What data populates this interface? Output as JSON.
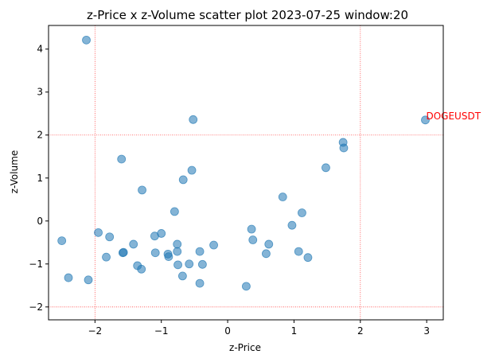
{
  "chart_data": {
    "type": "scatter",
    "title": "z-Price x z-Volume scatter plot 2023-07-25 window:20",
    "xlabel": "z-Price",
    "ylabel": "z-Volume",
    "xlim": [
      -2.7,
      3.25
    ],
    "ylim": [
      -2.3,
      4.55
    ],
    "xticks": [
      -2,
      -1,
      0,
      1,
      2,
      3
    ],
    "yticks": [
      -2,
      -1,
      0,
      1,
      2,
      3,
      4
    ],
    "xtick_labels": [
      "−2",
      "−1",
      "0",
      "1",
      "2",
      "3"
    ],
    "ytick_labels": [
      "−2",
      "−1",
      "0",
      "1",
      "2",
      "3",
      "4"
    ],
    "grid": false,
    "reference_lines": {
      "x": [
        -2,
        2
      ],
      "y": [
        -2,
        2
      ],
      "color": "#ff0000",
      "style": "dotted"
    },
    "point_color": "#1f77b4",
    "point_alpha": 0.55,
    "points": [
      {
        "x": -2.13,
        "y": 4.21
      },
      {
        "x": -2.5,
        "y": -0.46
      },
      {
        "x": -2.4,
        "y": -1.32
      },
      {
        "x": -2.1,
        "y": -1.37
      },
      {
        "x": -1.95,
        "y": -0.27
      },
      {
        "x": -1.78,
        "y": -0.37
      },
      {
        "x": -1.83,
        "y": -0.84
      },
      {
        "x": -1.6,
        "y": 1.44
      },
      {
        "x": -1.58,
        "y": -0.74
      },
      {
        "x": -1.57,
        "y": -0.73
      },
      {
        "x": -1.42,
        "y": -0.54
      },
      {
        "x": -1.36,
        "y": -1.04
      },
      {
        "x": -1.3,
        "y": -1.12
      },
      {
        "x": -1.29,
        "y": 0.72
      },
      {
        "x": -1.1,
        "y": -0.35
      },
      {
        "x": -1.09,
        "y": -0.74
      },
      {
        "x": -1.0,
        "y": -0.29
      },
      {
        "x": -0.9,
        "y": -0.77
      },
      {
        "x": -0.89,
        "y": -0.83
      },
      {
        "x": -0.8,
        "y": 0.22
      },
      {
        "x": -0.76,
        "y": -0.54
      },
      {
        "x": -0.76,
        "y": -0.71
      },
      {
        "x": -0.75,
        "y": -1.02
      },
      {
        "x": -0.68,
        "y": -1.28
      },
      {
        "x": -0.67,
        "y": 0.96
      },
      {
        "x": -0.58,
        "y": -1.0
      },
      {
        "x": -0.54,
        "y": 1.18
      },
      {
        "x": -0.52,
        "y": 2.36
      },
      {
        "x": -0.42,
        "y": -0.71
      },
      {
        "x": -0.42,
        "y": -1.45
      },
      {
        "x": -0.38,
        "y": -1.01
      },
      {
        "x": -0.21,
        "y": -0.56
      },
      {
        "x": 0.28,
        "y": -1.52
      },
      {
        "x": 0.36,
        "y": -0.19
      },
      {
        "x": 0.38,
        "y": -0.44
      },
      {
        "x": 0.58,
        "y": -0.76
      },
      {
        "x": 0.62,
        "y": -0.54
      },
      {
        "x": 0.83,
        "y": 0.56
      },
      {
        "x": 0.97,
        "y": -0.1
      },
      {
        "x": 1.07,
        "y": -0.71
      },
      {
        "x": 1.12,
        "y": 0.19
      },
      {
        "x": 1.21,
        "y": -0.85
      },
      {
        "x": 1.48,
        "y": 1.24
      },
      {
        "x": 1.74,
        "y": 1.83
      },
      {
        "x": 1.75,
        "y": 1.7
      },
      {
        "x": 2.98,
        "y": 2.35
      }
    ],
    "annotations": [
      {
        "text": "DOGEUSDT",
        "x": 2.98,
        "y": 2.35,
        "color": "#ff0000"
      }
    ]
  }
}
